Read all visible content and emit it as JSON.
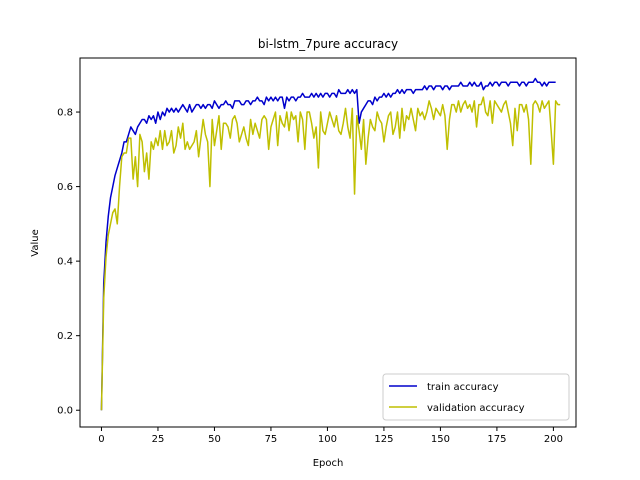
{
  "chart_data": {
    "type": "line",
    "title": "bi-lstm_7pure accuracy",
    "xlabel": "Epoch",
    "ylabel": "Value",
    "xlim": [
      -9.5,
      210
    ],
    "ylim": [
      -0.045,
      0.945
    ],
    "xticks": [
      0,
      25,
      50,
      75,
      100,
      125,
      150,
      175,
      200
    ],
    "yticks": [
      0.0,
      0.2,
      0.4,
      0.6,
      0.8
    ],
    "ytick_labels": [
      "0.0",
      "0.2",
      "0.4",
      "0.6",
      "0.8"
    ],
    "legend_position": "lower-right",
    "series": [
      {
        "name": "train accuracy",
        "color": "#0000cc",
        "values": [
          0.0,
          0.34,
          0.45,
          0.52,
          0.57,
          0.6,
          0.63,
          0.65,
          0.67,
          0.69,
          0.72,
          0.72,
          0.74,
          0.76,
          0.75,
          0.74,
          0.76,
          0.77,
          0.78,
          0.78,
          0.77,
          0.79,
          0.78,
          0.79,
          0.77,
          0.8,
          0.78,
          0.8,
          0.79,
          0.81,
          0.8,
          0.81,
          0.8,
          0.81,
          0.8,
          0.81,
          0.82,
          0.81,
          0.8,
          0.82,
          0.8,
          0.81,
          0.82,
          0.82,
          0.81,
          0.82,
          0.81,
          0.82,
          0.82,
          0.81,
          0.83,
          0.82,
          0.81,
          0.82,
          0.82,
          0.83,
          0.82,
          0.82,
          0.81,
          0.83,
          0.83,
          0.83,
          0.82,
          0.82,
          0.83,
          0.83,
          0.82,
          0.83,
          0.83,
          0.84,
          0.83,
          0.83,
          0.82,
          0.84,
          0.83,
          0.84,
          0.83,
          0.84,
          0.83,
          0.84,
          0.84,
          0.81,
          0.84,
          0.83,
          0.84,
          0.84,
          0.83,
          0.84,
          0.84,
          0.85,
          0.84,
          0.84,
          0.84,
          0.85,
          0.84,
          0.85,
          0.84,
          0.85,
          0.84,
          0.85,
          0.85,
          0.84,
          0.85,
          0.85,
          0.84,
          0.86,
          0.85,
          0.85,
          0.85,
          0.86,
          0.85,
          0.86,
          0.85,
          0.86,
          0.77,
          0.8,
          0.81,
          0.82,
          0.83,
          0.83,
          0.82,
          0.84,
          0.83,
          0.84,
          0.84,
          0.85,
          0.84,
          0.85,
          0.84,
          0.85,
          0.85,
          0.86,
          0.85,
          0.86,
          0.85,
          0.86,
          0.86,
          0.86,
          0.85,
          0.86,
          0.86,
          0.86,
          0.86,
          0.87,
          0.86,
          0.87,
          0.87,
          0.86,
          0.87,
          0.87,
          0.87,
          0.86,
          0.87,
          0.87,
          0.86,
          0.87,
          0.87,
          0.87,
          0.87,
          0.88,
          0.87,
          0.87,
          0.87,
          0.88,
          0.87,
          0.88,
          0.87,
          0.87,
          0.88,
          0.86,
          0.87,
          0.87,
          0.88,
          0.87,
          0.88,
          0.88,
          0.87,
          0.88,
          0.88,
          0.88,
          0.87,
          0.88,
          0.88,
          0.88,
          0.88,
          0.87,
          0.88,
          0.88,
          0.87,
          0.88,
          0.88,
          0.88,
          0.89,
          0.88,
          0.88,
          0.87,
          0.88,
          0.87,
          0.88,
          0.88,
          0.88,
          0.88
        ]
      },
      {
        "name": "validation accuracy",
        "color": "#bfbf00",
        "values": [
          0.0,
          0.3,
          0.41,
          0.47,
          0.5,
          0.53,
          0.54,
          0.5,
          0.6,
          0.68,
          0.69,
          0.69,
          0.73,
          0.73,
          0.62,
          0.68,
          0.6,
          0.74,
          0.72,
          0.64,
          0.69,
          0.62,
          0.72,
          0.7,
          0.73,
          0.71,
          0.75,
          0.7,
          0.75,
          0.71,
          0.72,
          0.75,
          0.69,
          0.71,
          0.76,
          0.73,
          0.77,
          0.7,
          0.72,
          0.7,
          0.71,
          0.72,
          0.75,
          0.68,
          0.73,
          0.78,
          0.74,
          0.72,
          0.6,
          0.78,
          0.71,
          0.75,
          0.79,
          0.7,
          0.77,
          0.77,
          0.76,
          0.73,
          0.78,
          0.79,
          0.77,
          0.72,
          0.74,
          0.76,
          0.73,
          0.71,
          0.78,
          0.74,
          0.77,
          0.75,
          0.73,
          0.78,
          0.79,
          0.78,
          0.7,
          0.76,
          0.78,
          0.8,
          0.71,
          0.79,
          0.77,
          0.76,
          0.8,
          0.75,
          0.8,
          0.78,
          0.79,
          0.72,
          0.8,
          0.78,
          0.7,
          0.8,
          0.8,
          0.77,
          0.73,
          0.76,
          0.65,
          0.8,
          0.75,
          0.74,
          0.77,
          0.8,
          0.78,
          0.76,
          0.79,
          0.75,
          0.74,
          0.77,
          0.81,
          0.76,
          0.73,
          0.81,
          0.58,
          0.79,
          0.75,
          0.7,
          0.78,
          0.66,
          0.73,
          0.78,
          0.76,
          0.75,
          0.8,
          0.78,
          0.77,
          0.72,
          0.76,
          0.79,
          0.8,
          0.74,
          0.76,
          0.8,
          0.73,
          0.81,
          0.75,
          0.79,
          0.78,
          0.81,
          0.78,
          0.75,
          0.81,
          0.79,
          0.8,
          0.78,
          0.8,
          0.83,
          0.81,
          0.78,
          0.81,
          0.8,
          0.79,
          0.82,
          0.79,
          0.7,
          0.78,
          0.82,
          0.82,
          0.8,
          0.83,
          0.8,
          0.82,
          0.83,
          0.81,
          0.82,
          0.8,
          0.83,
          0.76,
          0.82,
          0.82,
          0.84,
          0.8,
          0.79,
          0.83,
          0.77,
          0.83,
          0.82,
          0.81,
          0.8,
          0.82,
          0.83,
          0.8,
          0.77,
          0.71,
          0.81,
          0.75,
          0.82,
          0.82,
          0.8,
          0.82,
          0.78,
          0.66,
          0.82,
          0.83,
          0.82,
          0.8,
          0.83,
          0.81,
          0.82,
          0.83,
          0.75,
          0.66,
          0.83,
          0.82,
          0.82
        ]
      }
    ]
  }
}
